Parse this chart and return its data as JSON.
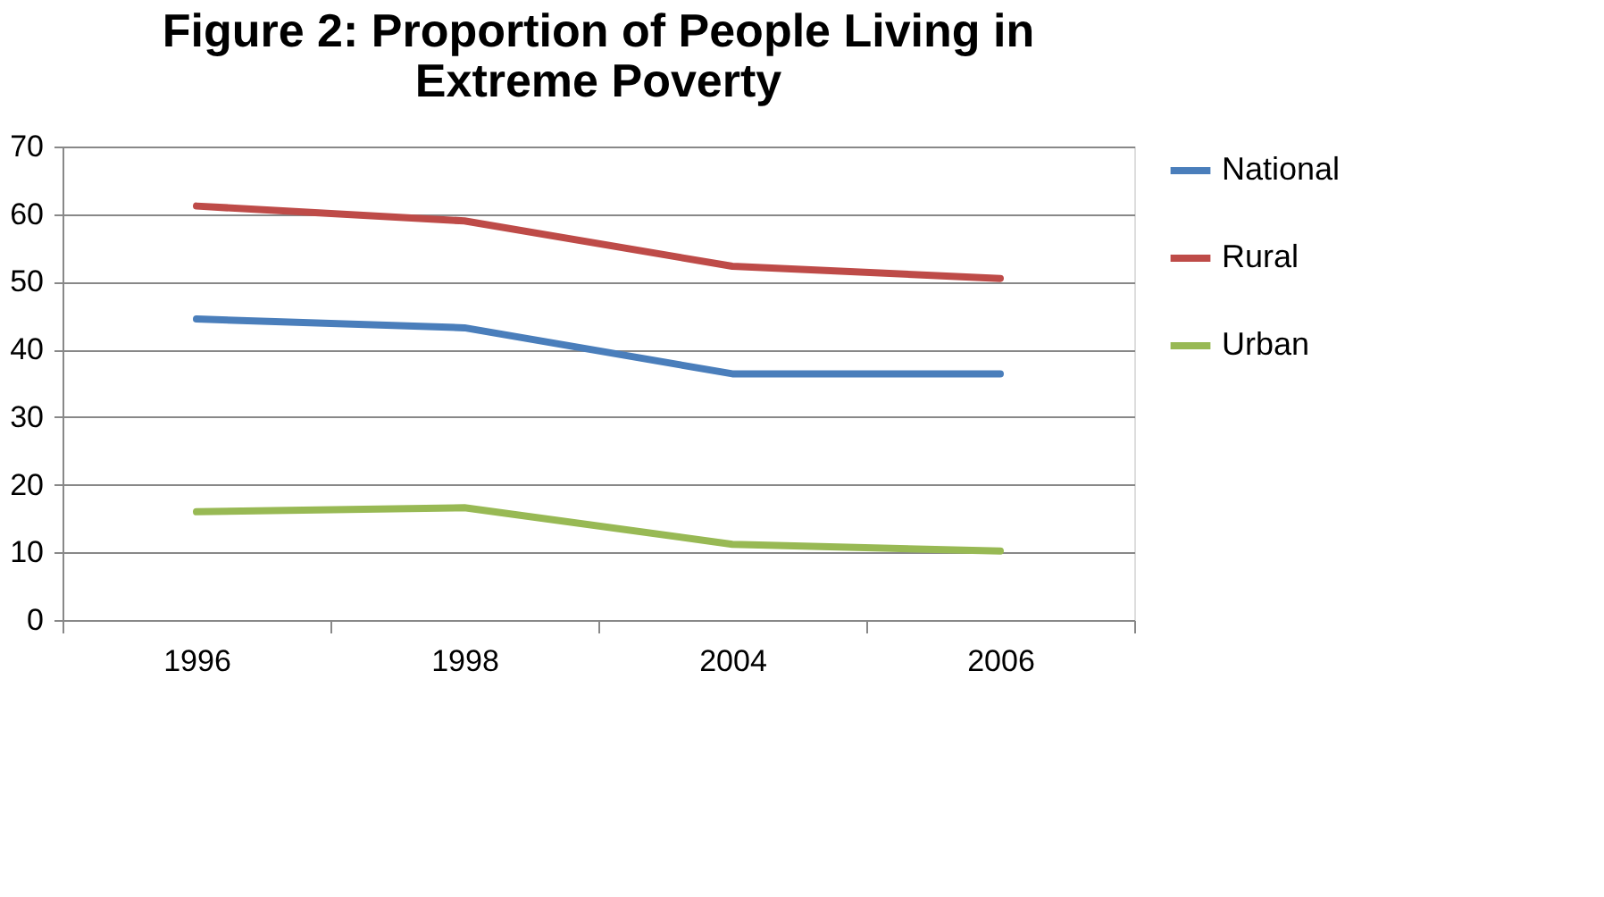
{
  "chart_data": {
    "type": "line",
    "title": [
      "Figure 2: Proportion of People Living in",
      "Extreme Poverty"
    ],
    "categories": [
      "1996",
      "1998",
      "2004",
      "2006"
    ],
    "series": [
      {
        "name": "National",
        "color": "#4a7ebb",
        "values": [
          44.5,
          43.2,
          36.4,
          36.4
        ]
      },
      {
        "name": "Rural",
        "color": "#be4b48",
        "values": [
          61.2,
          59.0,
          52.3,
          50.5
        ]
      },
      {
        "name": "Urban",
        "color": "#98b954",
        "values": [
          16.0,
          16.6,
          11.2,
          10.2
        ]
      }
    ],
    "ylim": [
      0,
      70
    ],
    "yticks": [
      0,
      10,
      20,
      30,
      40,
      50,
      60,
      70
    ],
    "grid": "y",
    "legend": "right",
    "marker": "none",
    "line_style": "solid"
  }
}
